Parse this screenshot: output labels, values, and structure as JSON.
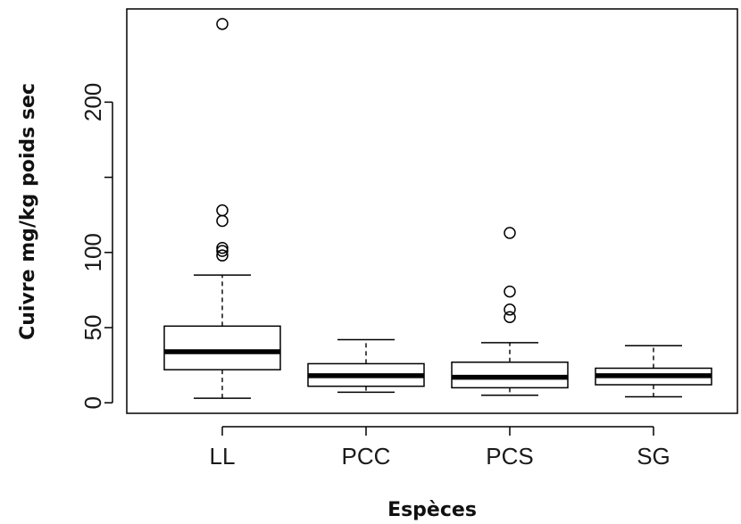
{
  "chart_data": {
    "type": "boxplot",
    "xlabel": "Espèces",
    "ylabel": "Cuivre mg/kg poids sec",
    "ylim": [
      -7,
      262
    ],
    "yticks": [
      0,
      50,
      100,
      200
    ],
    "categories": [
      "LL",
      "PCC",
      "PCS",
      "SG"
    ],
    "boxes": [
      {
        "category": "LL",
        "whisker_low": 3,
        "q1": 22,
        "median": 34,
        "q3": 51,
        "whisker_high": 85,
        "outliers": [
          252,
          128,
          121,
          103,
          101,
          98
        ]
      },
      {
        "category": "PCC",
        "whisker_low": 7,
        "q1": 11,
        "median": 18,
        "q3": 26,
        "whisker_high": 42,
        "outliers": []
      },
      {
        "category": "PCS",
        "whisker_low": 5,
        "q1": 10,
        "median": 17,
        "q3": 27,
        "whisker_high": 40,
        "outliers": [
          113,
          74,
          62,
          57
        ]
      },
      {
        "category": "SG",
        "whisker_low": 4,
        "q1": 12,
        "median": 18,
        "q3": 23,
        "whisker_high": 38,
        "outliers": []
      }
    ],
    "legend": "none",
    "grid": false
  }
}
